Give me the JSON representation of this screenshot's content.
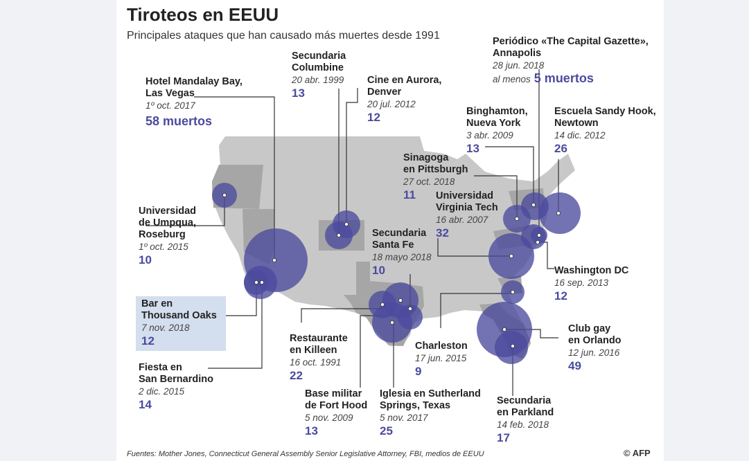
{
  "title": "Tiroteos en EEUU",
  "subtitle": "Principales ataques que han causado más muertes desde 1991",
  "footer": "Fuentes: Mother Jones, Connecticut General Assembly Senior Legislative Attorney, FBI, medios de EEUU",
  "credit": "© AFP",
  "colors": {
    "bubble": "#4b4a9e",
    "map": "#c8c8c8",
    "highlight_state": "#a6a6a6",
    "deaths_text": "#4b4a9e",
    "highlight_box": "#d3deee"
  },
  "shootings": [
    {
      "id": "mandalay",
      "name_lines": [
        "Hotel Mandalay Bay,",
        "Las Vegas"
      ],
      "date": "1º oct. 2017",
      "deaths": 58,
      "deaths_label": "58 muertos"
    },
    {
      "id": "columbine",
      "name_lines": [
        "Secundaria",
        "Columbine"
      ],
      "date": "20 abr. 1999",
      "deaths": 13,
      "deaths_label": "13"
    },
    {
      "id": "aurora",
      "name_lines": [
        "Cine en Aurora,",
        "Denver"
      ],
      "date": "20 jul. 2012",
      "deaths": 12,
      "deaths_label": "12"
    },
    {
      "id": "capital_gazette",
      "name_lines": [
        "Periódico «The Capital Gazette»,",
        "Annapolis"
      ],
      "date": "28 jun. 2018",
      "deaths": 5,
      "deaths_prefix": "al menos",
      "deaths_label": "5 muertos"
    },
    {
      "id": "binghamton",
      "name_lines": [
        "Binghamton,",
        "Nueva York"
      ],
      "date": "3 abr. 2009",
      "deaths": 13,
      "deaths_label": "13"
    },
    {
      "id": "sandy_hook",
      "name_lines": [
        "Escuela Sandy Hook,",
        "Newtown"
      ],
      "date": "14 dic. 2012",
      "deaths": 26,
      "deaths_label": "26"
    },
    {
      "id": "pittsburgh",
      "name_lines": [
        "Sinagoga",
        "en Pittsburgh"
      ],
      "date": "27 oct. 2018",
      "deaths": 11,
      "deaths_label": "11"
    },
    {
      "id": "virginia_tech",
      "name_lines": [
        "Universidad",
        "Virginia Tech"
      ],
      "date": "16 abr. 2007",
      "deaths": 32,
      "deaths_label": "32"
    },
    {
      "id": "umpqua",
      "name_lines": [
        "Universidad",
        "de Umpqua,",
        "Roseburg"
      ],
      "date": "1º oct. 2015",
      "deaths": 10,
      "deaths_label": "10"
    },
    {
      "id": "santa_fe",
      "name_lines": [
        "Secundaria",
        "Santa Fe"
      ],
      "date": "18 mayo 2018",
      "deaths": 10,
      "deaths_label": "10"
    },
    {
      "id": "washington",
      "name_lines": [
        "Washington DC"
      ],
      "date": "16 sep. 2013",
      "deaths": 12,
      "deaths_label": "12"
    },
    {
      "id": "thousand_oaks",
      "name_lines": [
        "Bar en",
        "Thousand Oaks"
      ],
      "date": "7 nov. 2018",
      "deaths": 12,
      "deaths_label": "12",
      "highlighted": true
    },
    {
      "id": "killeen",
      "name_lines": [
        "Restaurante",
        "en Killeen"
      ],
      "date": "16 oct. 1991",
      "deaths": 22,
      "deaths_label": "22"
    },
    {
      "id": "charleston",
      "name_lines": [
        "Charleston"
      ],
      "date": "17 jun. 2015",
      "deaths": 9,
      "deaths_label": "9"
    },
    {
      "id": "orlando",
      "name_lines": [
        "Club gay",
        "en Orlando"
      ],
      "date": "12 jun. 2016",
      "deaths": 49,
      "deaths_label": "49"
    },
    {
      "id": "san_bernardino",
      "name_lines": [
        "Fiesta en",
        "San Bernardino"
      ],
      "date": "2 dic. 2015",
      "deaths": 14,
      "deaths_label": "14"
    },
    {
      "id": "fort_hood",
      "name_lines": [
        "Base militar",
        "de Fort Hood"
      ],
      "date": "5 nov. 2009",
      "deaths": 13,
      "deaths_label": "13"
    },
    {
      "id": "sutherland",
      "name_lines": [
        "Iglesia en Sutherland",
        "Springs, Texas"
      ],
      "date": "5 nov. 2017",
      "deaths": 25,
      "deaths_label": "25"
    },
    {
      "id": "parkland",
      "name_lines": [
        "Secundaria",
        "en Parkland"
      ],
      "date": "14 feb. 2018",
      "deaths": 17,
      "deaths_label": "17"
    }
  ]
}
